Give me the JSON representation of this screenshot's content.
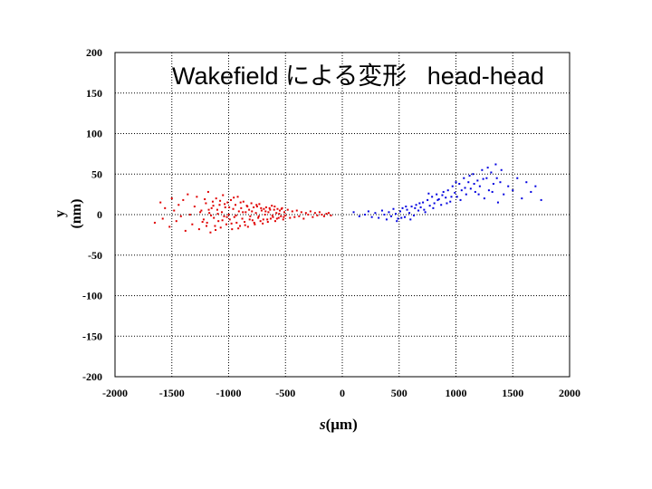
{
  "chart_data": {
    "type": "scatter",
    "title": "Wakefield による変形   head-head",
    "xlabel_italic": "s",
    "xlabel_rest": "(μm)",
    "ylabel": "y (nm)",
    "xlim": [
      -2000,
      2000
    ],
    "ylim": [
      -200,
      200
    ],
    "xticks": [
      -2000,
      -1500,
      -1000,
      -500,
      0,
      500,
      1000,
      1500,
      2000
    ],
    "yticks": [
      200,
      150,
      100,
      50,
      0,
      -50,
      -100,
      -150,
      -200
    ],
    "grid": true,
    "series": [
      {
        "color": "#e00000",
        "points": [
          [
            -1650,
            -10
          ],
          [
            -1600,
            15
          ],
          [
            -1580,
            -5
          ],
          [
            -1560,
            8
          ],
          [
            -1520,
            -15
          ],
          [
            -1500,
            20
          ],
          [
            -1480,
            5
          ],
          [
            -1460,
            -8
          ],
          [
            -1440,
            12
          ],
          [
            -1420,
            -2
          ],
          [
            -1400,
            18
          ],
          [
            -1380,
            -20
          ],
          [
            -1360,
            25
          ],
          [
            -1340,
            0
          ],
          [
            -1320,
            -12
          ],
          [
            -1300,
            10
          ],
          [
            -1280,
            22
          ],
          [
            -1260,
            -18
          ],
          [
            -1240,
            5
          ],
          [
            -1220,
            -6
          ],
          [
            -1200,
            14
          ],
          [
            -1190,
            -10
          ],
          [
            -1180,
            28
          ],
          [
            -1170,
            2
          ],
          [
            -1160,
            -22
          ],
          [
            -1150,
            8
          ],
          [
            -1140,
            16
          ],
          [
            -1130,
            -4
          ],
          [
            -1120,
            -14
          ],
          [
            -1110,
            20
          ],
          [
            -1100,
            6
          ],
          [
            -1090,
            -8
          ],
          [
            -1080,
            12
          ],
          [
            -1070,
            -16
          ],
          [
            -1060,
            3
          ],
          [
            -1050,
            24
          ],
          [
            -1040,
            -2
          ],
          [
            -1030,
            9
          ],
          [
            -1020,
            -12
          ],
          [
            -1010,
            15
          ],
          [
            -1000,
            0
          ],
          [
            -990,
            -6
          ],
          [
            -980,
            18
          ],
          [
            -970,
            -18
          ],
          [
            -960,
            7
          ],
          [
            -950,
            -3
          ],
          [
            -940,
            12
          ],
          [
            -930,
            -10
          ],
          [
            -920,
            22
          ],
          [
            -910,
            4
          ],
          [
            -900,
            -14
          ],
          [
            -890,
            8
          ],
          [
            -880,
            -5
          ],
          [
            -870,
            16
          ],
          [
            -860,
            -9
          ],
          [
            -850,
            3
          ],
          [
            -840,
            11
          ],
          [
            -830,
            -15
          ],
          [
            -820,
            6
          ],
          [
            -810,
            -2
          ],
          [
            -800,
            14
          ],
          [
            -790,
            -7
          ],
          [
            -780,
            9
          ],
          [
            -770,
            -12
          ],
          [
            -760,
            2
          ],
          [
            -750,
            10
          ],
          [
            -740,
            -4
          ],
          [
            -730,
            13
          ],
          [
            -720,
            -8
          ],
          [
            -710,
            5
          ],
          [
            -700,
            -11
          ],
          [
            -690,
            7
          ],
          [
            -680,
            0
          ],
          [
            -670,
            9
          ],
          [
            -660,
            -6
          ],
          [
            -650,
            3
          ],
          [
            -640,
            8
          ],
          [
            -630,
            -5
          ],
          [
            -620,
            11
          ],
          [
            -610,
            -3
          ],
          [
            -600,
            6
          ],
          [
            -590,
            -8
          ],
          [
            -580,
            2
          ],
          [
            -570,
            7
          ],
          [
            -560,
            -4
          ],
          [
            -550,
            5
          ],
          [
            -540,
            -2
          ],
          [
            -530,
            8
          ],
          [
            -520,
            -6
          ],
          [
            -510,
            3
          ],
          [
            -500,
            -1
          ],
          [
            -480,
            6
          ],
          [
            -460,
            -4
          ],
          [
            -440,
            4
          ],
          [
            -420,
            -3
          ],
          [
            -400,
            5
          ],
          [
            -380,
            -2
          ],
          [
            -360,
            3
          ],
          [
            -340,
            -5
          ],
          [
            -320,
            2
          ],
          [
            -300,
            0
          ],
          [
            -280,
            4
          ],
          [
            -260,
            -3
          ],
          [
            -240,
            2
          ],
          [
            -220,
            -1
          ],
          [
            -200,
            3
          ],
          [
            -180,
            0
          ],
          [
            -160,
            -2
          ],
          [
            -140,
            1
          ],
          [
            -120,
            2
          ],
          [
            -100,
            -1
          ],
          [
            -1250,
            3
          ],
          [
            -1230,
            -9
          ],
          [
            -1210,
            19
          ],
          [
            -1195,
            -14
          ],
          [
            -1175,
            6
          ],
          [
            -1155,
            -1
          ],
          [
            -1135,
            11
          ],
          [
            -1115,
            -19
          ],
          [
            -1095,
            1
          ],
          [
            -1075,
            17
          ],
          [
            -1055,
            -7
          ],
          [
            -1035,
            13
          ],
          [
            -1015,
            -3
          ],
          [
            -995,
            9
          ],
          [
            -975,
            -11
          ],
          [
            -955,
            21
          ],
          [
            -935,
            -1
          ],
          [
            -915,
            -17
          ],
          [
            -895,
            15
          ],
          [
            -875,
            3
          ],
          [
            -855,
            -13
          ],
          [
            -835,
            10
          ],
          [
            -815,
            -6
          ],
          [
            -795,
            4
          ],
          [
            -775,
            -10
          ],
          [
            -755,
            12
          ],
          [
            -735,
            -2
          ],
          [
            -715,
            8
          ],
          [
            -695,
            -6
          ],
          [
            -675,
            4
          ],
          [
            -655,
            -9
          ],
          [
            -635,
            6
          ],
          [
            -615,
            -1
          ],
          [
            -595,
            10
          ],
          [
            -575,
            -5
          ],
          [
            -555,
            1
          ],
          [
            -535,
            7
          ],
          [
            -515,
            -3
          ]
        ]
      },
      {
        "color": "#0000e0",
        "points": [
          [
            100,
            3
          ],
          [
            150,
            -2
          ],
          [
            200,
            0
          ],
          [
            230,
            4
          ],
          [
            260,
            -3
          ],
          [
            290,
            2
          ],
          [
            320,
            -4
          ],
          [
            350,
            5
          ],
          [
            370,
            0
          ],
          [
            390,
            -6
          ],
          [
            410,
            3
          ],
          [
            430,
            -2
          ],
          [
            450,
            7
          ],
          [
            470,
            1
          ],
          [
            490,
            -5
          ],
          [
            510,
            4
          ],
          [
            530,
            8
          ],
          [
            550,
            -3
          ],
          [
            570,
            6
          ],
          [
            590,
            2
          ],
          [
            610,
            10
          ],
          [
            630,
            -1
          ],
          [
            650,
            12
          ],
          [
            670,
            5
          ],
          [
            690,
            9
          ],
          [
            710,
            15
          ],
          [
            730,
            3
          ],
          [
            750,
            18
          ],
          [
            770,
            11
          ],
          [
            790,
            22
          ],
          [
            810,
            14
          ],
          [
            830,
            25
          ],
          [
            850,
            19
          ],
          [
            870,
            12
          ],
          [
            890,
            28
          ],
          [
            910,
            21
          ],
          [
            930,
            30
          ],
          [
            950,
            16
          ],
          [
            970,
            35
          ],
          [
            990,
            27
          ],
          [
            1010,
            22
          ],
          [
            1030,
            38
          ],
          [
            1050,
            30
          ],
          [
            1070,
            45
          ],
          [
            1090,
            25
          ],
          [
            1110,
            40
          ],
          [
            1130,
            32
          ],
          [
            1150,
            50
          ],
          [
            1170,
            28
          ],
          [
            1190,
            42
          ],
          [
            1210,
            35
          ],
          [
            1230,
            55
          ],
          [
            1250,
            20
          ],
          [
            1270,
            45
          ],
          [
            1290,
            30
          ],
          [
            1310,
            52
          ],
          [
            1330,
            38
          ],
          [
            1350,
            62
          ],
          [
            1370,
            15
          ],
          [
            1390,
            40
          ],
          [
            1420,
            25
          ],
          [
            1460,
            35
          ],
          [
            1500,
            30
          ],
          [
            1540,
            45
          ],
          [
            1580,
            20
          ],
          [
            1620,
            40
          ],
          [
            1660,
            28
          ],
          [
            1700,
            35
          ],
          [
            1750,
            18
          ],
          [
            480,
            -8
          ],
          [
            520,
            -4
          ],
          [
            560,
            10
          ],
          [
            600,
            -6
          ],
          [
            640,
            8
          ],
          [
            680,
            14
          ],
          [
            720,
            6
          ],
          [
            760,
            26
          ],
          [
            800,
            8
          ],
          [
            840,
            18
          ],
          [
            880,
            24
          ],
          [
            920,
            14
          ],
          [
            960,
            22
          ],
          [
            1000,
            40
          ],
          [
            1040,
            18
          ],
          [
            1080,
            33
          ],
          [
            1120,
            48
          ],
          [
            1160,
            38
          ],
          [
            1200,
            25
          ],
          [
            1240,
            44
          ],
          [
            1280,
            58
          ],
          [
            1320,
            28
          ],
          [
            1360,
            45
          ],
          [
            1400,
            55
          ]
        ]
      }
    ]
  }
}
